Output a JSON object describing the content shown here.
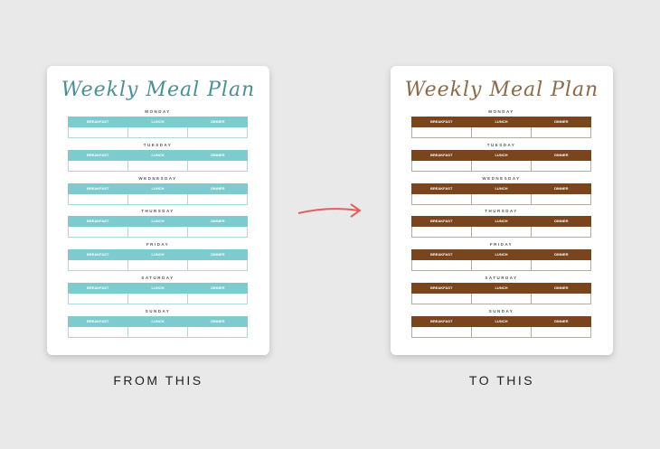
{
  "title": "Weekly Meal Plan",
  "days": [
    "MONDAY",
    "TUESDAY",
    "WEDNESDAY",
    "THURSDAY",
    "FRIDAY",
    "SATURDAY",
    "SUNDAY"
  ],
  "meals": [
    "BREAKFAST",
    "LUNCH",
    "DINNER"
  ],
  "from": {
    "caption": "FROM THIS",
    "accent": "#7ecbcf",
    "title_color": "#4d8f93",
    "border": "#a9dadd"
  },
  "to": {
    "caption": "TO THIS",
    "accent": "#7a451c",
    "title_color": "#8a6a4c",
    "border": "#b8aa9c"
  },
  "arrow_color": "#e0615f"
}
